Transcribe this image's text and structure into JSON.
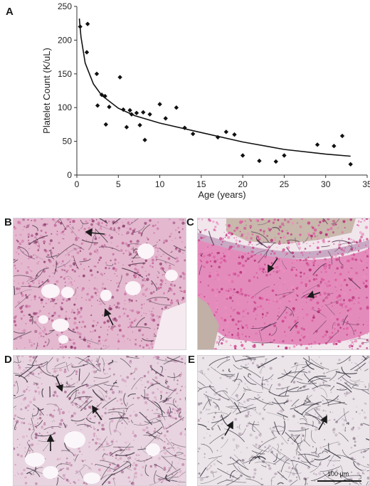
{
  "panels": {
    "a": "A",
    "b": "B",
    "c": "C",
    "d": "D",
    "e": "E"
  },
  "scale_bar": "100 µm",
  "chart_data": {
    "type": "scatter",
    "xlabel": "Age (years)",
    "ylabel": "Platelet Count (K/uL)",
    "xlim": [
      0,
      35
    ],
    "ylim": [
      0,
      250
    ],
    "x_ticks": [
      0,
      5,
      10,
      15,
      20,
      25,
      30,
      35
    ],
    "y_ticks": [
      0,
      50,
      100,
      150,
      200,
      250
    ],
    "grid": false,
    "points": [
      [
        0.4,
        220
      ],
      [
        1.3,
        224
      ],
      [
        1.2,
        182
      ],
      [
        2.4,
        150
      ],
      [
        2.5,
        103
      ],
      [
        3.0,
        119
      ],
      [
        3.4,
        117
      ],
      [
        3.5,
        75
      ],
      [
        3.9,
        101
      ],
      [
        5.2,
        145
      ],
      [
        5.6,
        97
      ],
      [
        6.0,
        71
      ],
      [
        6.4,
        96
      ],
      [
        6.6,
        90
      ],
      [
        7.2,
        92
      ],
      [
        7.6,
        74
      ],
      [
        8.0,
        93
      ],
      [
        8.2,
        52
      ],
      [
        8.8,
        90
      ],
      [
        10.0,
        105
      ],
      [
        10.7,
        84
      ],
      [
        12.0,
        100
      ],
      [
        13.0,
        70
      ],
      [
        14.0,
        61
      ],
      [
        17.0,
        56
      ],
      [
        18.0,
        64
      ],
      [
        19.0,
        60
      ],
      [
        20.0,
        29
      ],
      [
        22.0,
        21
      ],
      [
        24.0,
        20
      ],
      [
        25.0,
        29
      ],
      [
        29.0,
        45
      ],
      [
        31.0,
        43
      ],
      [
        32.0,
        58
      ],
      [
        33.0,
        16
      ]
    ],
    "trend": {
      "type": "power",
      "x": [
        0.3,
        0.5,
        1,
        2,
        3,
        5,
        7,
        10,
        15,
        20,
        25,
        30,
        33
      ],
      "y": [
        232,
        205,
        166,
        135,
        118,
        99,
        88,
        77,
        63,
        49,
        38,
        31,
        28
      ]
    }
  }
}
